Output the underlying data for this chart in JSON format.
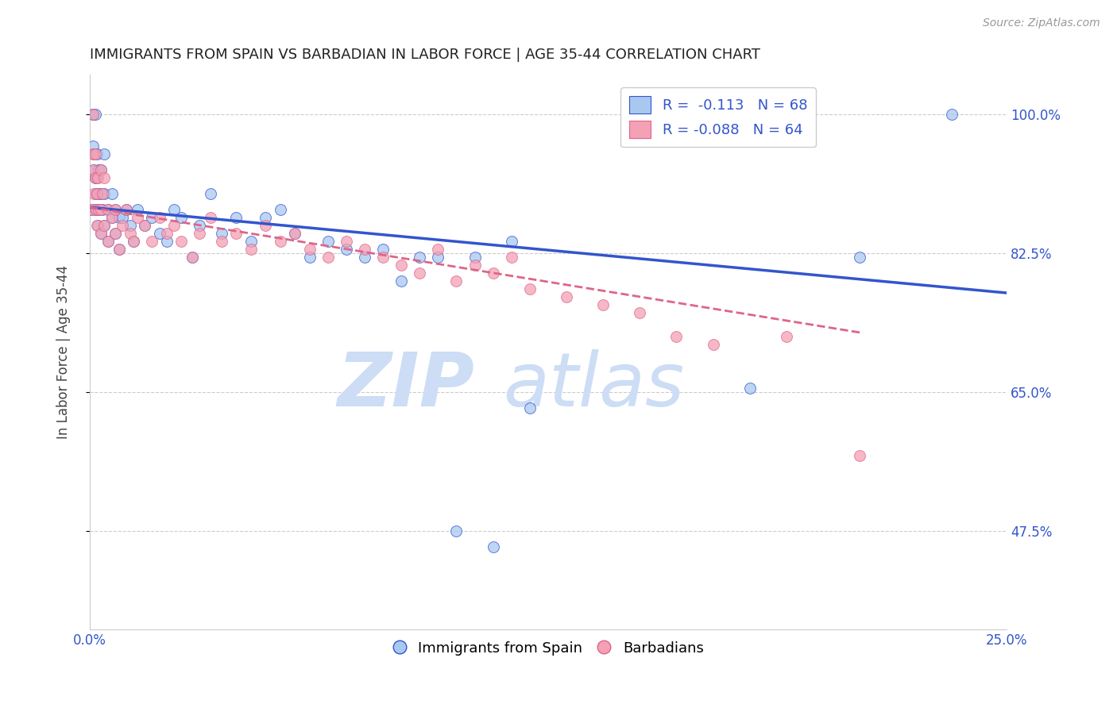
{
  "title": "IMMIGRANTS FROM SPAIN VS BARBADIAN IN LABOR FORCE | AGE 35-44 CORRELATION CHART",
  "source": "Source: ZipAtlas.com",
  "ylabel": "In Labor Force | Age 35-44",
  "xlim": [
    0.0,
    0.25
  ],
  "ylim": [
    0.35,
    1.05
  ],
  "yticks": [
    0.475,
    0.65,
    0.825,
    1.0
  ],
  "ytick_labels": [
    "47.5%",
    "65.0%",
    "82.5%",
    "100.0%"
  ],
  "xticks": [
    0.0,
    0.05,
    0.1,
    0.15,
    0.2,
    0.25
  ],
  "xtick_labels": [
    "0.0%",
    "",
    "",
    "",
    "",
    "25.0%"
  ],
  "legend_r1": "R =  -0.113",
  "legend_n1": "N = 68",
  "legend_r2": "R = -0.088",
  "legend_n2": "N = 64",
  "color_blue": "#a8c8f0",
  "color_pink": "#f4a0b5",
  "trendline_blue": "#3355cc",
  "trendline_pink": "#dd6688",
  "spain_x": [
    0.0005,
    0.0008,
    0.001,
    0.001,
    0.0012,
    0.0012,
    0.0015,
    0.0015,
    0.0015,
    0.0018,
    0.002,
    0.002,
    0.002,
    0.0022,
    0.0022,
    0.0025,
    0.0025,
    0.003,
    0.003,
    0.003,
    0.0035,
    0.004,
    0.004,
    0.004,
    0.005,
    0.005,
    0.006,
    0.006,
    0.007,
    0.007,
    0.008,
    0.008,
    0.009,
    0.01,
    0.011,
    0.012,
    0.013,
    0.015,
    0.017,
    0.019,
    0.021,
    0.023,
    0.025,
    0.028,
    0.03,
    0.033,
    0.036,
    0.04,
    0.044,
    0.048,
    0.052,
    0.056,
    0.06,
    0.065,
    0.07,
    0.075,
    0.08,
    0.085,
    0.09,
    0.095,
    0.1,
    0.105,
    0.11,
    0.115,
    0.12,
    0.18,
    0.21,
    0.235
  ],
  "spain_y": [
    0.88,
    1.0,
    0.96,
    1.0,
    0.93,
    0.95,
    0.88,
    0.92,
    1.0,
    0.9,
    0.88,
    0.92,
    0.95,
    0.86,
    0.9,
    0.88,
    0.93,
    0.85,
    0.9,
    0.93,
    0.88,
    0.86,
    0.9,
    0.95,
    0.84,
    0.88,
    0.87,
    0.9,
    0.85,
    0.88,
    0.83,
    0.87,
    0.87,
    0.88,
    0.86,
    0.84,
    0.88,
    0.86,
    0.87,
    0.85,
    0.84,
    0.88,
    0.87,
    0.82,
    0.86,
    0.9,
    0.85,
    0.87,
    0.84,
    0.87,
    0.88,
    0.85,
    0.82,
    0.84,
    0.83,
    0.82,
    0.83,
    0.79,
    0.82,
    0.82,
    0.475,
    0.82,
    0.455,
    0.84,
    0.63,
    0.655,
    0.82,
    1.0
  ],
  "barbadian_x": [
    0.0005,
    0.0008,
    0.001,
    0.001,
    0.0012,
    0.0015,
    0.0015,
    0.0018,
    0.002,
    0.002,
    0.0022,
    0.0025,
    0.003,
    0.003,
    0.003,
    0.0035,
    0.004,
    0.004,
    0.005,
    0.005,
    0.006,
    0.007,
    0.007,
    0.008,
    0.009,
    0.01,
    0.011,
    0.012,
    0.013,
    0.015,
    0.017,
    0.019,
    0.021,
    0.023,
    0.025,
    0.028,
    0.03,
    0.033,
    0.036,
    0.04,
    0.044,
    0.048,
    0.052,
    0.056,
    0.06,
    0.065,
    0.07,
    0.075,
    0.08,
    0.085,
    0.09,
    0.095,
    0.1,
    0.105,
    0.11,
    0.115,
    0.12,
    0.13,
    0.14,
    0.15,
    0.16,
    0.17,
    0.19,
    0.21
  ],
  "barbadian_y": [
    0.88,
    0.95,
    0.93,
    1.0,
    0.9,
    0.92,
    0.95,
    0.88,
    0.86,
    0.9,
    0.92,
    0.88,
    0.85,
    0.88,
    0.93,
    0.9,
    0.86,
    0.92,
    0.84,
    0.88,
    0.87,
    0.85,
    0.88,
    0.83,
    0.86,
    0.88,
    0.85,
    0.84,
    0.87,
    0.86,
    0.84,
    0.87,
    0.85,
    0.86,
    0.84,
    0.82,
    0.85,
    0.87,
    0.84,
    0.85,
    0.83,
    0.86,
    0.84,
    0.85,
    0.83,
    0.82,
    0.84,
    0.83,
    0.82,
    0.81,
    0.8,
    0.83,
    0.79,
    0.81,
    0.8,
    0.82,
    0.78,
    0.77,
    0.76,
    0.75,
    0.72,
    0.71,
    0.72,
    0.57
  ],
  "trendline_blue_x0": 0.0,
  "trendline_blue_x1": 0.25,
  "trendline_blue_y0": 0.883,
  "trendline_blue_y1": 0.775,
  "trendline_pink_x0": 0.0,
  "trendline_pink_x1": 0.21,
  "trendline_pink_y0": 0.883,
  "trendline_pink_y1": 0.725
}
